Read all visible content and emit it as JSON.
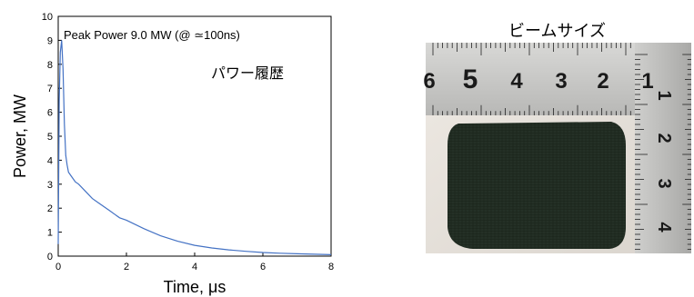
{
  "chart_data": {
    "type": "line",
    "xlabel": "Time, μs",
    "ylabel": "Power, MW",
    "xlim": [
      0,
      8
    ],
    "ylim": [
      0,
      10
    ],
    "xticks": [
      0,
      2,
      4,
      6,
      8
    ],
    "yticks": [
      0,
      1,
      2,
      3,
      4,
      5,
      6,
      7,
      8,
      9,
      10
    ],
    "grid": false,
    "line_color": "#4472c4",
    "annotations": {
      "peak": "Peak Power 9.0 MW (@ ≃100ns)",
      "history": "パワー履歴"
    },
    "series": [
      {
        "x": [
          0.0,
          0.03,
          0.06,
          0.1,
          0.14,
          0.18,
          0.22,
          0.26,
          0.3,
          0.4,
          0.5,
          0.6,
          0.8,
          1.0,
          1.2,
          1.5,
          1.8,
          2.0,
          2.5,
          3.0,
          3.5,
          4.0,
          4.5,
          5.0,
          5.5,
          6.0,
          6.5,
          7.0,
          7.5,
          8.0
        ],
        "y": [
          0.5,
          6.5,
          8.5,
          9.0,
          7.8,
          5.5,
          4.2,
          3.8,
          3.5,
          3.3,
          3.1,
          3.0,
          2.7,
          2.4,
          2.2,
          1.9,
          1.6,
          1.5,
          1.15,
          0.85,
          0.62,
          0.45,
          0.34,
          0.26,
          0.2,
          0.15,
          0.12,
          0.1,
          0.08,
          0.06
        ]
      }
    ]
  },
  "photo": {
    "title": "ビームサイズ",
    "ruler_top_labels": [
      "6",
      "5",
      "4",
      "3",
      "2",
      "1"
    ],
    "ruler_side_labels": [
      "1",
      "2",
      "3",
      "4"
    ]
  }
}
